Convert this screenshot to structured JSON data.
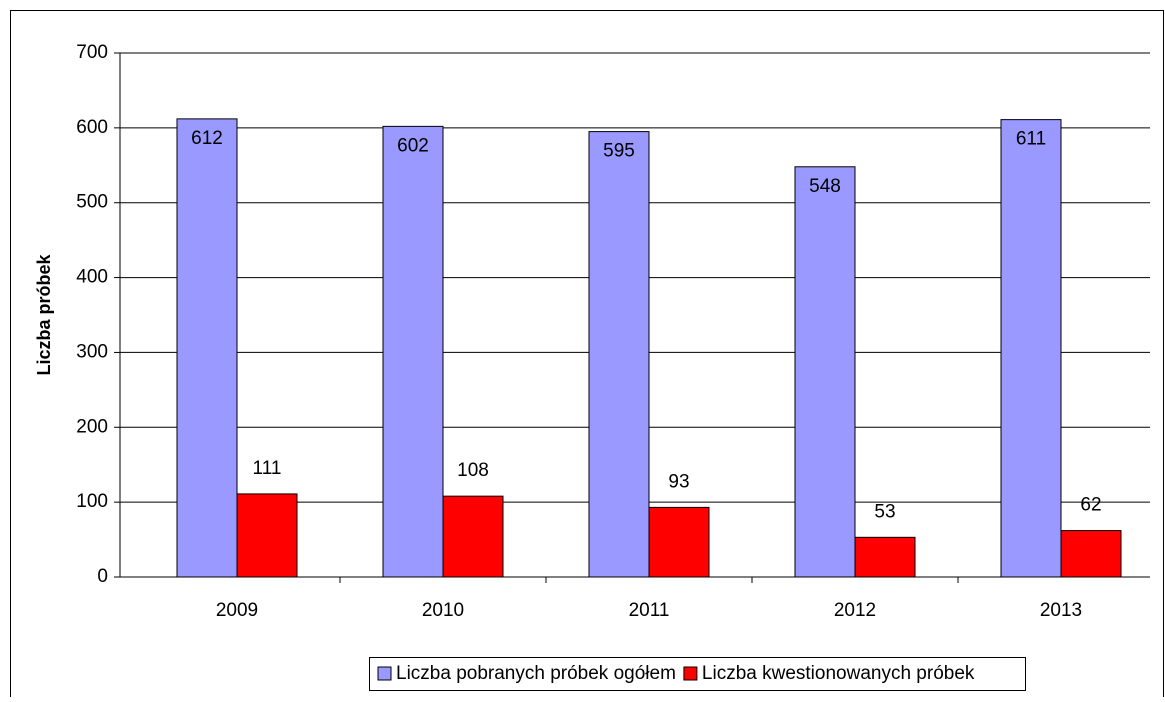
{
  "chart_data": {
    "type": "bar",
    "y_label": "Liczba próbek",
    "categories": [
      "2009",
      "2010",
      "2011",
      "2012",
      "2013"
    ],
    "series": [
      {
        "name": "Liczba pobranych próbek ogółem",
        "color": "#9999ff",
        "values": [
          612,
          602,
          595,
          548,
          611
        ]
      },
      {
        "name": "Liczba kwestionowanych próbek",
        "color": "#ff0000",
        "values": [
          111,
          108,
          93,
          53,
          62
        ]
      }
    ],
    "ylim": [
      0,
      700
    ],
    "yticks": [
      0,
      100,
      200,
      300,
      400,
      500,
      600,
      700
    ],
    "grid": true,
    "legend": "bottom"
  }
}
